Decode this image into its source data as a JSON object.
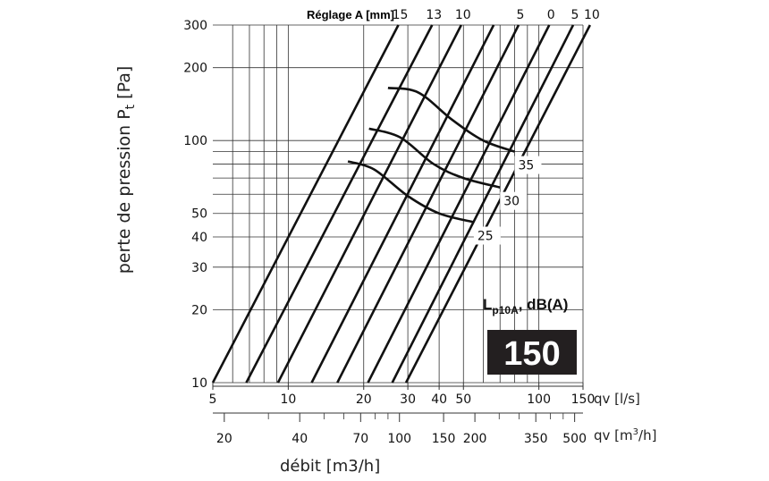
{
  "chart_data": {
    "type": "line",
    "title": "",
    "ylabel_main": "perte de pression P",
    "ylabel_sub": "t",
    "ylabel_unit": " [Pa]",
    "x_axis_1": {
      "unit_label": "qv [l/s]",
      "scale": "log",
      "ticks": [
        "5",
        "10",
        "20",
        "30",
        "40",
        "50",
        "100",
        "150"
      ],
      "tick_values": [
        5,
        10,
        20,
        30,
        40,
        50,
        100,
        150
      ],
      "range": [
        5,
        150
      ]
    },
    "x_axis_2": {
      "unit_label_pre": "qv [m",
      "unit_label_sup": "3",
      "unit_label_post": "/h]",
      "scale": "log",
      "ticks": [
        "20",
        "40",
        "70",
        "100",
        "150",
        "200",
        "350",
        "500"
      ],
      "tick_values": [
        20,
        40,
        70,
        100,
        150,
        200,
        350,
        500
      ]
    },
    "xlabel_bottom": "débit [m3/h]",
    "y_axis": {
      "scale": "log",
      "ticks": [
        "10",
        "20",
        "30",
        "40",
        "50",
        "100",
        "200",
        "300"
      ],
      "tick_values": [
        10,
        20,
        30,
        40,
        50,
        100,
        200,
        300
      ],
      "range": [
        10,
        300
      ]
    },
    "grid": true,
    "top_scale_label": "Réglage A [mm]",
    "damper_settings": [
      {
        "label": "15",
        "points": [
          [
            5,
            10
          ],
          [
            27.5,
            300
          ]
        ]
      },
      {
        "label": "13",
        "points": [
          [
            6.8,
            10
          ],
          [
            37.5,
            300
          ]
        ]
      },
      {
        "label": "10",
        "points": [
          [
            9.1,
            10
          ],
          [
            49,
            300
          ]
        ]
      },
      {
        "label": "",
        "points": [
          [
            12.4,
            10
          ],
          [
            66,
            300
          ]
        ]
      },
      {
        "label": "5",
        "points": [
          [
            15.7,
            10
          ],
          [
            83,
            300
          ]
        ]
      },
      {
        "label": "0",
        "points": [
          [
            20.8,
            10
          ],
          [
            110,
            300
          ]
        ]
      },
      {
        "label": "5",
        "points": [
          [
            26,
            10
          ],
          [
            137,
            300
          ]
        ]
      },
      {
        "label": "10",
        "points": [
          [
            29.5,
            10
          ],
          [
            160,
            300
          ]
        ]
      }
    ],
    "noise_curves": [
      {
        "label": "35",
        "points": [
          [
            25,
            165
          ],
          [
            33,
            158
          ],
          [
            45,
            122
          ],
          [
            60,
            100
          ],
          [
            80,
            90
          ]
        ]
      },
      {
        "label": "30",
        "points": [
          [
            21,
            112
          ],
          [
            28,
            103
          ],
          [
            38,
            80
          ],
          [
            50,
            70
          ],
          [
            70,
            64
          ]
        ]
      },
      {
        "label": "25",
        "points": [
          [
            17.3,
            82
          ],
          [
            22,
            76
          ],
          [
            30,
            59
          ],
          [
            40,
            50
          ],
          [
            55,
            46
          ]
        ]
      }
    ],
    "noise_level_label_main": "L",
    "noise_level_label_sub": "p10A",
    "noise_level_label_tail": ", dB(A)",
    "size_badge": "150"
  }
}
